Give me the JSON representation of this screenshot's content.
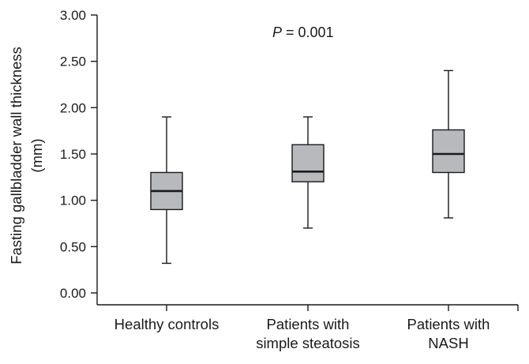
{
  "chart_data": {
    "type": "boxplot",
    "ylabel_lines": [
      "Fasting gallbladder wall thickness",
      "(mm)"
    ],
    "ylim": [
      0,
      3
    ],
    "yticks": [
      0,
      0.5,
      1,
      1.5,
      2,
      2.5,
      3
    ],
    "ytick_labels": [
      "0.00",
      "0.50",
      "1.00",
      "1.50",
      "2.00",
      "2.50",
      "3.00"
    ],
    "categories": [
      [
        "Healthy controls"
      ],
      [
        "Patients with",
        "simple steatosis"
      ],
      [
        "Patients with",
        "NASH"
      ]
    ],
    "boxes": [
      {
        "min": 0.32,
        "q1": 0.9,
        "median": 1.1,
        "q3": 1.3,
        "max": 1.9
      },
      {
        "min": 0.7,
        "q1": 1.2,
        "median": 1.31,
        "q3": 1.6,
        "max": 1.9
      },
      {
        "min": 0.81,
        "q1": 1.3,
        "median": 1.5,
        "q3": 1.76,
        "max": 2.4
      }
    ],
    "annotation": {
      "italic_part": "P",
      "rest": " = 0.001"
    },
    "box_color": "#b8b9bd"
  }
}
